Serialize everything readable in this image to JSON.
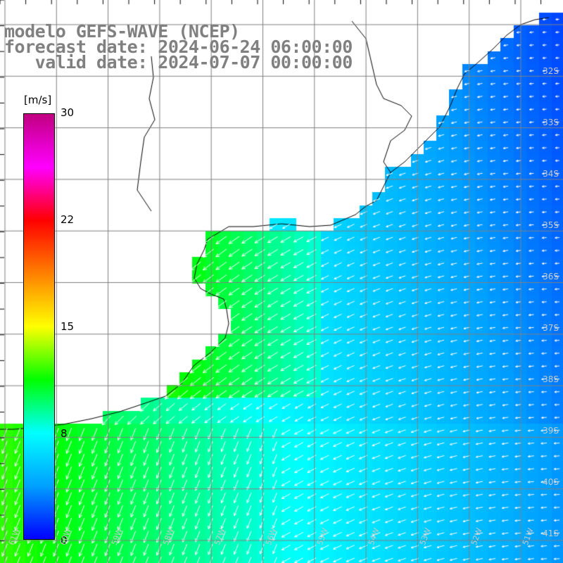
{
  "title": {
    "line1": "modelo GEFS-WAVE (NCEP)",
    "line2": "forecast date: 2024-06-24 06:00:00",
    "line3": "   valid date: 2024-07-07 00:00:00"
  },
  "colorbar": {
    "unit": "[m/s]",
    "ticks": [
      "30",
      "22",
      "15",
      "8",
      "0"
    ],
    "tick_values": [
      30,
      22,
      15,
      8,
      0
    ],
    "colors": [
      "#0000ff",
      "#00a0ff",
      "#00ffff",
      "#00ff00",
      "#ffff00",
      "#ff8000",
      "#ff0000",
      "#ff00ff",
      "#c00080"
    ]
  },
  "lat_labels": [
    "32S",
    "33S",
    "34S",
    "35S",
    "36S",
    "37S",
    "38S",
    "39S",
    "40S",
    "41S"
  ],
  "lon_labels": [
    "61W",
    "60W",
    "59W",
    "58W",
    "57W",
    "56W",
    "55W",
    "54W",
    "53W",
    "52W",
    "51W"
  ],
  "map": {
    "lon_range": [
      -62,
      -51
    ],
    "lat_range": [
      -41.5,
      -31
    ],
    "field": "wind speed (m/s) with direction arrows",
    "coast_color": "#000000",
    "grid_color": "#808080"
  }
}
